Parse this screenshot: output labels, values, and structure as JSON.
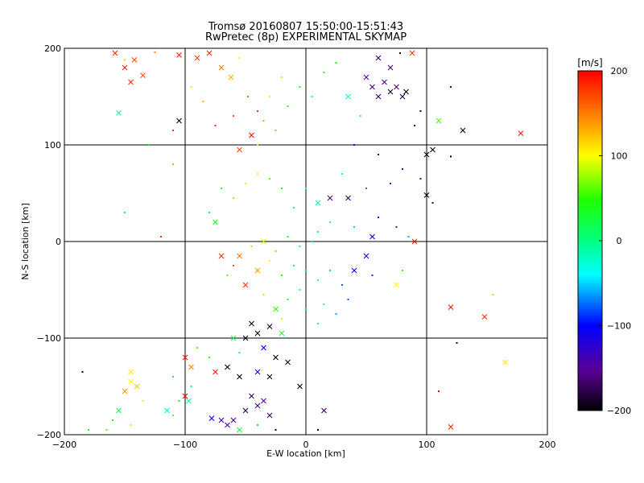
{
  "chart_data": {
    "type": "scatter",
    "title": "Tromsø 20160807 15:50:00-15:51:43",
    "subtitle": "RwPretec (8p) EXPERIMENTAL SKYMAP",
    "xlabel": "E-W location [km]",
    "ylabel": "N-S location [km]",
    "xlim": [
      -200,
      200
    ],
    "ylim": [
      -200,
      200
    ],
    "x_ticks": [
      -200,
      -100,
      0,
      100,
      200
    ],
    "y_ticks": [
      -200,
      -100,
      0,
      100,
      200
    ],
    "x_tick_labels": [
      "−200",
      "−100",
      "0",
      "100",
      "200"
    ],
    "y_tick_labels": [
      "−200",
      "−100",
      "0",
      "100",
      "200"
    ],
    "grid_lines": [
      -100,
      0,
      100
    ],
    "colorbar": {
      "label": "[m/s]",
      "range": [
        -200,
        200
      ],
      "ticks": [
        -200,
        -100,
        0,
        100,
        200
      ],
      "tick_labels": [
        "−200",
        "−100",
        "0",
        "100",
        "200"
      ],
      "colormap": "rainbow: black → purple → blue → cyan → green → yellow → red"
    },
    "markers": [
      "dot",
      "x"
    ],
    "points": [
      {
        "x": -158,
        "y": 195,
        "v": 185,
        "m": "x"
      },
      {
        "x": -150,
        "y": 180,
        "v": 190,
        "m": "x"
      },
      {
        "x": -142,
        "y": 188,
        "v": 175,
        "m": "x"
      },
      {
        "x": -135,
        "y": 172,
        "v": 165,
        "m": "x"
      },
      {
        "x": -145,
        "y": 165,
        "v": 180,
        "m": "x"
      },
      {
        "x": -125,
        "y": 196,
        "v": 155,
        "m": "dot"
      },
      {
        "x": -155,
        "y": 133,
        "v": -10,
        "m": "x"
      },
      {
        "x": -150,
        "y": 188,
        "v": 120,
        "m": "dot"
      },
      {
        "x": -105,
        "y": 193,
        "v": 190,
        "m": "x"
      },
      {
        "x": -90,
        "y": 190,
        "v": 175,
        "m": "x"
      },
      {
        "x": -80,
        "y": 195,
        "v": 185,
        "m": "x"
      },
      {
        "x": -70,
        "y": 180,
        "v": 150,
        "m": "x"
      },
      {
        "x": -62,
        "y": 170,
        "v": 130,
        "m": "x"
      },
      {
        "x": -55,
        "y": 190,
        "v": 110,
        "m": "dot"
      },
      {
        "x": -48,
        "y": 150,
        "v": 160,
        "m": "dot"
      },
      {
        "x": -40,
        "y": 135,
        "v": 175,
        "m": "dot"
      },
      {
        "x": -35,
        "y": 125,
        "v": 140,
        "m": "dot"
      },
      {
        "x": -45,
        "y": 110,
        "v": 195,
        "m": "x"
      },
      {
        "x": -30,
        "y": 150,
        "v": 90,
        "m": "dot"
      },
      {
        "x": -60,
        "y": 130,
        "v": 170,
        "m": "dot"
      },
      {
        "x": -75,
        "y": 120,
        "v": 185,
        "m": "dot"
      },
      {
        "x": -85,
        "y": 145,
        "v": 130,
        "m": "dot"
      },
      {
        "x": -95,
        "y": 160,
        "v": 100,
        "m": "dot"
      },
      {
        "x": -105,
        "y": 125,
        "v": -195,
        "m": "x"
      },
      {
        "x": -110,
        "y": 115,
        "v": 180,
        "m": "dot"
      },
      {
        "x": -55,
        "y": 95,
        "v": 170,
        "m": "x"
      },
      {
        "x": -40,
        "y": 100,
        "v": 110,
        "m": "dot"
      },
      {
        "x": -25,
        "y": 115,
        "v": 60,
        "m": "dot"
      },
      {
        "x": -20,
        "y": 170,
        "v": 80,
        "m": "dot"
      },
      {
        "x": -15,
        "y": 140,
        "v": 40,
        "m": "dot"
      },
      {
        "x": -5,
        "y": 160,
        "v": 30,
        "m": "dot"
      },
      {
        "x": 5,
        "y": 150,
        "v": 20,
        "m": "dot"
      },
      {
        "x": 15,
        "y": 175,
        "v": 50,
        "m": "dot"
      },
      {
        "x": 25,
        "y": 185,
        "v": 40,
        "m": "dot"
      },
      {
        "x": 35,
        "y": 150,
        "v": -20,
        "m": "x"
      },
      {
        "x": 45,
        "y": 130,
        "v": -10,
        "m": "dot"
      },
      {
        "x": 50,
        "y": 170,
        "v": -150,
        "m": "x"
      },
      {
        "x": 55,
        "y": 160,
        "v": -160,
        "m": "x"
      },
      {
        "x": 60,
        "y": 150,
        "v": -170,
        "m": "x"
      },
      {
        "x": 65,
        "y": 165,
        "v": -155,
        "m": "x"
      },
      {
        "x": 70,
        "y": 155,
        "v": -185,
        "m": "x"
      },
      {
        "x": 75,
        "y": 160,
        "v": -165,
        "m": "x"
      },
      {
        "x": 80,
        "y": 150,
        "v": -180,
        "m": "x"
      },
      {
        "x": 83,
        "y": 155,
        "v": -200,
        "m": "x"
      },
      {
        "x": 70,
        "y": 180,
        "v": -160,
        "m": "x"
      },
      {
        "x": 60,
        "y": 190,
        "v": -170,
        "m": "x"
      },
      {
        "x": 78,
        "y": 195,
        "v": -185,
        "m": "dot"
      },
      {
        "x": 88,
        "y": 195,
        "v": 180,
        "m": "x"
      },
      {
        "x": 95,
        "y": 135,
        "v": -190,
        "m": "dot"
      },
      {
        "x": 90,
        "y": 120,
        "v": -175,
        "m": "dot"
      },
      {
        "x": 110,
        "y": 125,
        "v": 60,
        "m": "x"
      },
      {
        "x": 130,
        "y": 115,
        "v": -195,
        "m": "x"
      },
      {
        "x": 120,
        "y": 160,
        "v": -170,
        "m": "dot"
      },
      {
        "x": 100,
        "y": 90,
        "v": -200,
        "m": "x"
      },
      {
        "x": 105,
        "y": 95,
        "v": -195,
        "m": "x"
      },
      {
        "x": 120,
        "y": 88,
        "v": -200,
        "m": "dot"
      },
      {
        "x": 178,
        "y": 112,
        "v": 190,
        "m": "x"
      },
      {
        "x": 40,
        "y": 100,
        "v": -100,
        "m": "dot"
      },
      {
        "x": 60,
        "y": 90,
        "v": -150,
        "m": "dot"
      },
      {
        "x": 80,
        "y": 75,
        "v": -120,
        "m": "dot"
      },
      {
        "x": 95,
        "y": 65,
        "v": -140,
        "m": "dot"
      },
      {
        "x": 100,
        "y": 48,
        "v": -200,
        "m": "x"
      },
      {
        "x": 105,
        "y": 40,
        "v": -180,
        "m": "dot"
      },
      {
        "x": 70,
        "y": 60,
        "v": -90,
        "m": "dot"
      },
      {
        "x": 50,
        "y": 55,
        "v": -70,
        "m": "dot"
      },
      {
        "x": 30,
        "y": 70,
        "v": -40,
        "m": "dot"
      },
      {
        "x": 20,
        "y": 45,
        "v": -160,
        "m": "x"
      },
      {
        "x": 35,
        "y": 45,
        "v": -170,
        "m": "x"
      },
      {
        "x": 10,
        "y": 40,
        "v": -20,
        "m": "x"
      },
      {
        "x": 0,
        "y": 55,
        "v": -10,
        "m": "dot"
      },
      {
        "x": -10,
        "y": 35,
        "v": 10,
        "m": "dot"
      },
      {
        "x": -20,
        "y": 55,
        "v": 30,
        "m": "dot"
      },
      {
        "x": -30,
        "y": 65,
        "v": 60,
        "m": "dot"
      },
      {
        "x": -40,
        "y": 70,
        "v": 90,
        "m": "dot"
      },
      {
        "x": -50,
        "y": 60,
        "v": 110,
        "m": "dot"
      },
      {
        "x": -60,
        "y": 45,
        "v": 70,
        "m": "dot"
      },
      {
        "x": -70,
        "y": 55,
        "v": 50,
        "m": "dot"
      },
      {
        "x": -80,
        "y": 30,
        "v": 30,
        "m": "dot"
      },
      {
        "x": -75,
        "y": 20,
        "v": 40,
        "m": "x"
      },
      {
        "x": -110,
        "y": 80,
        "v": 60,
        "m": "dot"
      },
      {
        "x": -130,
        "y": 100,
        "v": 40,
        "m": "dot"
      },
      {
        "x": -150,
        "y": 30,
        "v": 20,
        "m": "dot"
      },
      {
        "x": -120,
        "y": 5,
        "v": 180,
        "m": "dot"
      },
      {
        "x": 60,
        "y": 25,
        "v": -110,
        "m": "dot"
      },
      {
        "x": 75,
        "y": 15,
        "v": -90,
        "m": "dot"
      },
      {
        "x": 55,
        "y": 5,
        "v": -100,
        "m": "x"
      },
      {
        "x": 85,
        "y": 5,
        "v": -60,
        "m": "dot"
      },
      {
        "x": 90,
        "y": 0,
        "v": 195,
        "m": "x"
      },
      {
        "x": 40,
        "y": 15,
        "v": -50,
        "m": "dot"
      },
      {
        "x": 20,
        "y": 20,
        "v": -20,
        "m": "dot"
      },
      {
        "x": 10,
        "y": 10,
        "v": -10,
        "m": "dot"
      },
      {
        "x": 5,
        "y": 0,
        "v": -5,
        "m": "dot"
      },
      {
        "x": -5,
        "y": -5,
        "v": 10,
        "m": "dot"
      },
      {
        "x": -15,
        "y": 5,
        "v": 30,
        "m": "dot"
      },
      {
        "x": -25,
        "y": -10,
        "v": 60,
        "m": "dot"
      },
      {
        "x": -35,
        "y": 0,
        "v": 90,
        "m": "x"
      },
      {
        "x": -45,
        "y": -5,
        "v": 120,
        "m": "dot"
      },
      {
        "x": -55,
        "y": -15,
        "v": 150,
        "m": "x"
      },
      {
        "x": -60,
        "y": -25,
        "v": 170,
        "m": "dot"
      },
      {
        "x": -70,
        "y": -15,
        "v": 180,
        "m": "x"
      },
      {
        "x": -65,
        "y": -35,
        "v": 60,
        "m": "dot"
      },
      {
        "x": -50,
        "y": -45,
        "v": 180,
        "m": "x"
      },
      {
        "x": -40,
        "y": -30,
        "v": 140,
        "m": "x"
      },
      {
        "x": -30,
        "y": -20,
        "v": 100,
        "m": "dot"
      },
      {
        "x": -20,
        "y": -35,
        "v": 50,
        "m": "dot"
      },
      {
        "x": -10,
        "y": -25,
        "v": 20,
        "m": "dot"
      },
      {
        "x": 0,
        "y": -30,
        "v": 0,
        "m": "dot"
      },
      {
        "x": 10,
        "y": -40,
        "v": -20,
        "m": "dot"
      },
      {
        "x": 20,
        "y": -30,
        "v": -50,
        "m": "dot"
      },
      {
        "x": 30,
        "y": -45,
        "v": -80,
        "m": "dot"
      },
      {
        "x": 40,
        "y": -30,
        "v": -100,
        "m": "x"
      },
      {
        "x": 50,
        "y": -15,
        "v": -120,
        "m": "x"
      },
      {
        "x": 55,
        "y": -35,
        "v": -90,
        "m": "dot"
      },
      {
        "x": 75,
        "y": -45,
        "v": 100,
        "m": "x"
      },
      {
        "x": 80,
        "y": -30,
        "v": 50,
        "m": "dot"
      },
      {
        "x": -5,
        "y": -50,
        "v": 0,
        "m": "dot"
      },
      {
        "x": -15,
        "y": -60,
        "v": 30,
        "m": "dot"
      },
      {
        "x": -25,
        "y": -70,
        "v": 50,
        "m": "x"
      },
      {
        "x": -35,
        "y": -55,
        "v": 80,
        "m": "dot"
      },
      {
        "x": -20,
        "y": -80,
        "v": 90,
        "m": "dot"
      },
      {
        "x": 0,
        "y": -70,
        "v": 20,
        "m": "dot"
      },
      {
        "x": 15,
        "y": -65,
        "v": -30,
        "m": "dot"
      },
      {
        "x": 25,
        "y": -75,
        "v": -60,
        "m": "dot"
      },
      {
        "x": 10,
        "y": -85,
        "v": -10,
        "m": "dot"
      },
      {
        "x": 35,
        "y": -60,
        "v": -80,
        "m": "dot"
      },
      {
        "x": -45,
        "y": -85,
        "v": -190,
        "m": "x"
      },
      {
        "x": -40,
        "y": -95,
        "v": -200,
        "m": "x"
      },
      {
        "x": -30,
        "y": -88,
        "v": -180,
        "m": "x"
      },
      {
        "x": -50,
        "y": -100,
        "v": -195,
        "m": "x"
      },
      {
        "x": -35,
        "y": -110,
        "v": -100,
        "m": "x"
      },
      {
        "x": -25,
        "y": -120,
        "v": -200,
        "m": "x"
      },
      {
        "x": -15,
        "y": -125,
        "v": -190,
        "m": "x"
      },
      {
        "x": -20,
        "y": -95,
        "v": 30,
        "m": "x"
      },
      {
        "x": -60,
        "y": -100,
        "v": 20,
        "m": "x"
      },
      {
        "x": -55,
        "y": -115,
        "v": 0,
        "m": "dot"
      },
      {
        "x": -65,
        "y": -130,
        "v": -195,
        "m": "x"
      },
      {
        "x": -55,
        "y": -140,
        "v": -200,
        "m": "x"
      },
      {
        "x": -40,
        "y": -135,
        "v": -110,
        "m": "x"
      },
      {
        "x": -30,
        "y": -140,
        "v": -190,
        "m": "x"
      },
      {
        "x": -80,
        "y": -120,
        "v": 40,
        "m": "dot"
      },
      {
        "x": -75,
        "y": -135,
        "v": 190,
        "m": "x"
      },
      {
        "x": -100,
        "y": -120,
        "v": 190,
        "m": "x"
      },
      {
        "x": -95,
        "y": -130,
        "v": 150,
        "m": "x"
      },
      {
        "x": -90,
        "y": -110,
        "v": 60,
        "m": "dot"
      },
      {
        "x": -110,
        "y": -140,
        "v": 30,
        "m": "dot"
      },
      {
        "x": -100,
        "y": -160,
        "v": 195,
        "m": "x"
      },
      {
        "x": -95,
        "y": -150,
        "v": 20,
        "m": "dot"
      },
      {
        "x": -105,
        "y": -165,
        "v": 40,
        "m": "dot"
      },
      {
        "x": -97,
        "y": -165,
        "v": -10,
        "m": "x"
      },
      {
        "x": -115,
        "y": -175,
        "v": -20,
        "m": "x"
      },
      {
        "x": -110,
        "y": -180,
        "v": 60,
        "m": "dot"
      },
      {
        "x": -45,
        "y": -160,
        "v": -175,
        "m": "x"
      },
      {
        "x": -40,
        "y": -170,
        "v": -165,
        "m": "x"
      },
      {
        "x": -50,
        "y": -175,
        "v": -180,
        "m": "x"
      },
      {
        "x": -35,
        "y": -165,
        "v": -150,
        "m": "x"
      },
      {
        "x": -30,
        "y": -180,
        "v": -170,
        "m": "x"
      },
      {
        "x": -60,
        "y": -185,
        "v": -160,
        "m": "x"
      },
      {
        "x": -65,
        "y": -190,
        "v": -150,
        "m": "x"
      },
      {
        "x": -70,
        "y": -185,
        "v": -140,
        "m": "x"
      },
      {
        "x": -78,
        "y": -183,
        "v": -110,
        "m": "x"
      },
      {
        "x": -55,
        "y": -195,
        "v": 30,
        "m": "x"
      },
      {
        "x": -40,
        "y": -190,
        "v": 40,
        "m": "dot"
      },
      {
        "x": -25,
        "y": -195,
        "v": -200,
        "m": "dot"
      },
      {
        "x": -5,
        "y": -150,
        "v": -200,
        "m": "x"
      },
      {
        "x": 15,
        "y": -175,
        "v": -170,
        "m": "x"
      },
      {
        "x": 10,
        "y": -195,
        "v": -200,
        "m": "dot"
      },
      {
        "x": -145,
        "y": -135,
        "v": 110,
        "m": "x"
      },
      {
        "x": -145,
        "y": -145,
        "v": 100,
        "m": "x"
      },
      {
        "x": -150,
        "y": -155,
        "v": 140,
        "m": "x"
      },
      {
        "x": -140,
        "y": -150,
        "v": 120,
        "m": "x"
      },
      {
        "x": -135,
        "y": -165,
        "v": 90,
        "m": "dot"
      },
      {
        "x": -155,
        "y": -175,
        "v": 20,
        "m": "x"
      },
      {
        "x": -160,
        "y": -185,
        "v": 40,
        "m": "dot"
      },
      {
        "x": -165,
        "y": -195,
        "v": 60,
        "m": "dot"
      },
      {
        "x": -145,
        "y": -190,
        "v": 80,
        "m": "dot"
      },
      {
        "x": -185,
        "y": -135,
        "v": -200,
        "m": "dot"
      },
      {
        "x": -180,
        "y": -195,
        "v": 30,
        "m": "dot"
      },
      {
        "x": 120,
        "y": -68,
        "v": 190,
        "m": "x"
      },
      {
        "x": 148,
        "y": -78,
        "v": 180,
        "m": "x"
      },
      {
        "x": 165,
        "y": -125,
        "v": 110,
        "m": "x"
      },
      {
        "x": 120,
        "y": -192,
        "v": 185,
        "m": "x"
      },
      {
        "x": 110,
        "y": -155,
        "v": 200,
        "m": "dot"
      },
      {
        "x": 125,
        "y": -105,
        "v": -190,
        "m": "dot"
      },
      {
        "x": 155,
        "y": -55,
        "v": 120,
        "m": "dot"
      }
    ]
  }
}
